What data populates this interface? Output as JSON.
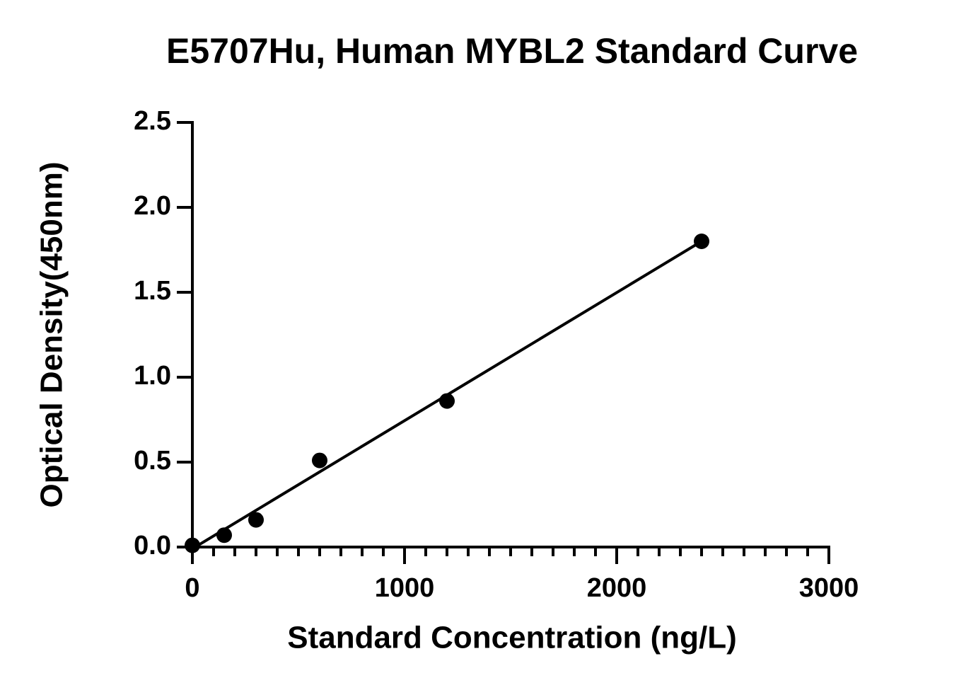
{
  "chart_data": {
    "type": "scatter",
    "title": "E5707Hu, Human MYBL2 Standard Curve",
    "x_label": "Standard Concentration (ng/L)",
    "y_label": "Optical Density(450nm)",
    "x": [
      0,
      150,
      300,
      600,
      1200,
      2400
    ],
    "values": [
      0.01,
      0.07,
      0.16,
      0.51,
      0.86,
      1.8
    ],
    "color": "#000000",
    "fit": {
      "x": [
        0,
        2400
      ],
      "values": [
        -0.01,
        1.8
      ]
    },
    "xlim": [
      0,
      3000
    ],
    "xticks": [
      0,
      1000,
      2000,
      3000
    ],
    "xminorticks": [
      100,
      200,
      300,
      400,
      500,
      600,
      700,
      800,
      900,
      1100,
      1200,
      1300,
      1400,
      1500,
      1600,
      1700,
      1800,
      1900,
      2100,
      2200,
      2300,
      2400,
      2500,
      2600,
      2700,
      2800,
      2900
    ],
    "ylim": [
      0,
      2.5
    ],
    "yticks": [
      {
        "value": 0,
        "label": "0.0"
      },
      {
        "value": 0.5,
        "label": "0.5"
      },
      {
        "value": 1,
        "label": "1.0"
      },
      {
        "value": 1.5,
        "label": "1.5"
      },
      {
        "value": 2,
        "label": "2.0"
      },
      {
        "value": 2.5,
        "label": "2.5"
      }
    ],
    "grid": false
  }
}
